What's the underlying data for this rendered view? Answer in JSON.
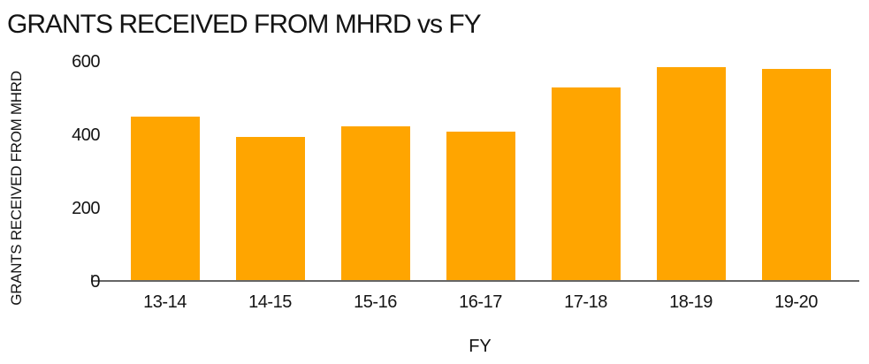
{
  "title": "GRANTS RECEIVED FROM MHRD vs FY",
  "colors": {
    "bar": "#FFA500",
    "axis": "#666666",
    "text": "#141414",
    "background": "#ffffff"
  },
  "chart_data": {
    "type": "bar",
    "title": "GRANTS RECEIVED FROM MHRD vs FY",
    "categories": [
      "13-14",
      "14-15",
      "15-16",
      "16-17",
      "17-18",
      "18-19",
      "19-20"
    ],
    "values": [
      445,
      390,
      420,
      405,
      525,
      580,
      575
    ],
    "xlabel": "FY",
    "ylabel": "GRANTS RECEIVED FROM MHRD",
    "yticks": [
      0,
      200,
      400,
      600
    ],
    "ylim": [
      0,
      600
    ],
    "grid": false,
    "legend": false,
    "bar_color": "#FFA500"
  }
}
